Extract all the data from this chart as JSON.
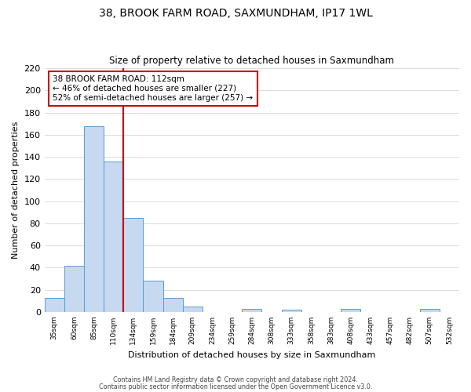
{
  "title": "38, BROOK FARM ROAD, SAXMUNDHAM, IP17 1WL",
  "subtitle": "Size of property relative to detached houses in Saxmundham",
  "xlabel": "Distribution of detached houses by size in Saxmundham",
  "ylabel": "Number of detached properties",
  "bin_labels": [
    "35sqm",
    "60sqm",
    "85sqm",
    "110sqm",
    "134sqm",
    "159sqm",
    "184sqm",
    "209sqm",
    "234sqm",
    "259sqm",
    "284sqm",
    "308sqm",
    "333sqm",
    "358sqm",
    "383sqm",
    "408sqm",
    "433sqm",
    "457sqm",
    "482sqm",
    "507sqm",
    "532sqm"
  ],
  "bar_values": [
    13,
    42,
    168,
    136,
    85,
    28,
    13,
    5,
    0,
    0,
    3,
    0,
    2,
    0,
    0,
    3,
    0,
    0,
    0,
    3,
    0
  ],
  "bar_color": "#c6d9f0",
  "bar_edge_color": "#5b9bd5",
  "ylim": [
    0,
    220
  ],
  "yticks": [
    0,
    20,
    40,
    60,
    80,
    100,
    120,
    140,
    160,
    180,
    200,
    220
  ],
  "property_line_index": 3,
  "property_line_color": "#cc0000",
  "annotation_title": "38 BROOK FARM ROAD: 112sqm",
  "annotation_line1": "← 46% of detached houses are smaller (227)",
  "annotation_line2": "52% of semi-detached houses are larger (257) →",
  "annotation_box_color": "#cc0000",
  "footer_line1": "Contains HM Land Registry data © Crown copyright and database right 2024.",
  "footer_line2": "Contains public sector information licensed under the Open Government Licence v3.0.",
  "background_color": "#ffffff",
  "grid_color": "#cccccc"
}
